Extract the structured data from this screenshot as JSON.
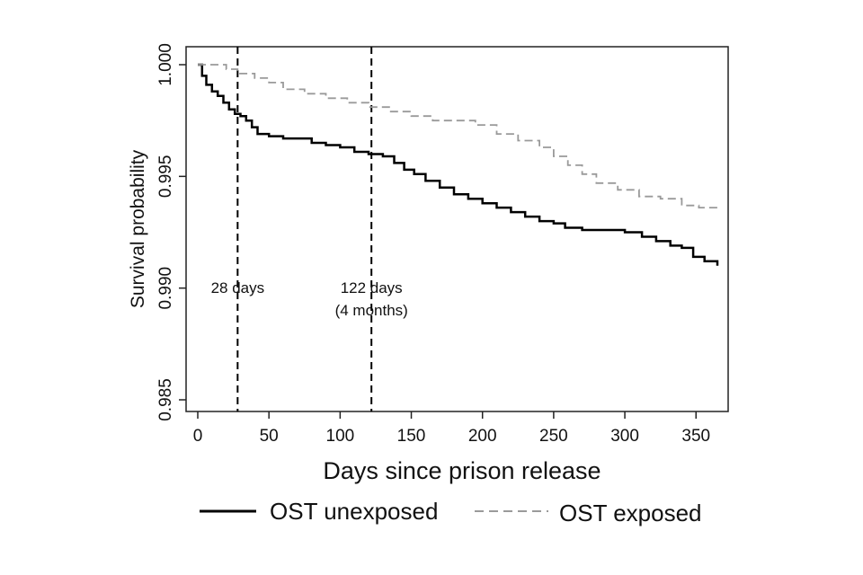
{
  "chart_data": {
    "type": "line",
    "title": "",
    "xlabel": "Days since prison release",
    "ylabel": "Survival probability",
    "xlim": [
      0,
      365
    ],
    "ylim": [
      0.985,
      1.0
    ],
    "x_ticks": [
      0,
      50,
      100,
      150,
      200,
      250,
      300,
      350
    ],
    "x_tick_labels": [
      "0",
      "50",
      "100",
      "150",
      "200",
      "250",
      "300",
      "350"
    ],
    "y_ticks": [
      0.985,
      0.99,
      0.995,
      1.0
    ],
    "y_tick_labels": [
      "0.985",
      "0.990",
      "0.995",
      "1.000"
    ],
    "grid": false,
    "legend_position": "bottom",
    "series": [
      {
        "name": "OST unexposed",
        "style": "solid",
        "color": "#000000",
        "points": [
          [
            0,
            1.0
          ],
          [
            3,
            0.9995
          ],
          [
            6,
            0.9991
          ],
          [
            10,
            0.9988
          ],
          [
            14,
            0.9986
          ],
          [
            18,
            0.9983
          ],
          [
            22,
            0.998
          ],
          [
            26,
            0.9978
          ],
          [
            30,
            0.9977
          ],
          [
            34,
            0.9975
          ],
          [
            38,
            0.9972
          ],
          [
            42,
            0.9969
          ],
          [
            50,
            0.9968
          ],
          [
            60,
            0.9967
          ],
          [
            72,
            0.9967
          ],
          [
            80,
            0.9965
          ],
          [
            90,
            0.9964
          ],
          [
            100,
            0.9963
          ],
          [
            110,
            0.9961
          ],
          [
            120,
            0.996
          ],
          [
            130,
            0.9959
          ],
          [
            138,
            0.9956
          ],
          [
            145,
            0.9953
          ],
          [
            152,
            0.9951
          ],
          [
            160,
            0.9948
          ],
          [
            170,
            0.9945
          ],
          [
            180,
            0.9942
          ],
          [
            190,
            0.994
          ],
          [
            200,
            0.9938
          ],
          [
            210,
            0.9936
          ],
          [
            220,
            0.9934
          ],
          [
            230,
            0.9932
          ],
          [
            240,
            0.993
          ],
          [
            250,
            0.9929
          ],
          [
            258,
            0.9927
          ],
          [
            270,
            0.9926
          ],
          [
            285,
            0.9926
          ],
          [
            300,
            0.9925
          ],
          [
            312,
            0.9923
          ],
          [
            322,
            0.9921
          ],
          [
            332,
            0.9919
          ],
          [
            340,
            0.9918
          ],
          [
            348,
            0.9914
          ],
          [
            356,
            0.9912
          ],
          [
            365,
            0.991
          ]
        ]
      },
      {
        "name": "OST exposed",
        "style": "dashed",
        "color": "#9a9a9a",
        "points": [
          [
            0,
            1.0
          ],
          [
            12,
            1.0
          ],
          [
            20,
            0.9998
          ],
          [
            28,
            0.9996
          ],
          [
            40,
            0.9994
          ],
          [
            50,
            0.9992
          ],
          [
            60,
            0.9989
          ],
          [
            75,
            0.9987
          ],
          [
            90,
            0.9985
          ],
          [
            105,
            0.9983
          ],
          [
            120,
            0.9981
          ],
          [
            135,
            0.9979
          ],
          [
            150,
            0.9977
          ],
          [
            165,
            0.9975
          ],
          [
            180,
            0.9975
          ],
          [
            195,
            0.9973
          ],
          [
            210,
            0.9969
          ],
          [
            225,
            0.9966
          ],
          [
            240,
            0.9963
          ],
          [
            250,
            0.9959
          ],
          [
            260,
            0.9955
          ],
          [
            270,
            0.9951
          ],
          [
            280,
            0.9947
          ],
          [
            295,
            0.9944
          ],
          [
            310,
            0.9941
          ],
          [
            325,
            0.994
          ],
          [
            340,
            0.9937
          ],
          [
            352,
            0.9936
          ],
          [
            365,
            0.9935
          ]
        ]
      }
    ],
    "reference_lines": [
      {
        "x": 28,
        "label_lines": [
          "28 days"
        ]
      },
      {
        "x": 122,
        "label_lines": [
          "122 days",
          "(4 months)"
        ]
      }
    ]
  }
}
